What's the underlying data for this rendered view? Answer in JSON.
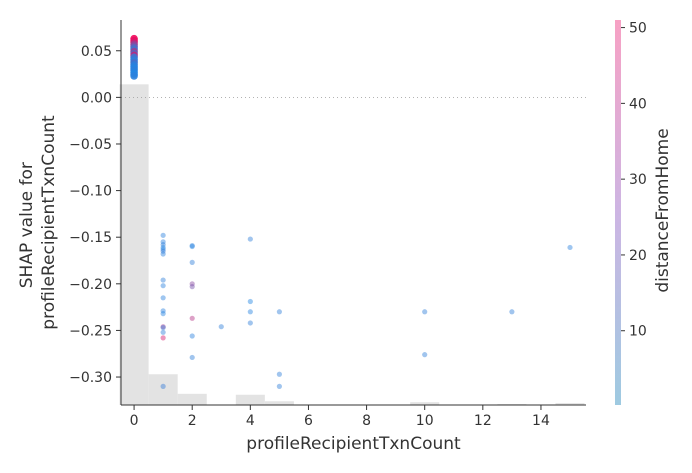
{
  "chart_data": {
    "type": "scatter",
    "title": "",
    "xlabel": "profileRecipientTxnCount",
    "ylabel_lines": [
      "SHAP value for",
      "profileRecipientTxnCount"
    ],
    "xlim": [
      -0.45,
      15.55
    ],
    "ylim": [
      -0.33,
      0.083
    ],
    "x_ticks": [
      0,
      2,
      4,
      6,
      8,
      10,
      12,
      14
    ],
    "y_ticks": [
      0.05,
      0.0,
      -0.05,
      -0.1,
      -0.15,
      -0.2,
      -0.25,
      -0.3
    ],
    "y_tick_labels": [
      "0.05",
      "0.00",
      "−0.05",
      "−0.10",
      "−0.15",
      "−0.20",
      "−0.25",
      "−0.30"
    ],
    "zero_line": 0.0,
    "colorbar": {
      "label": "distanceFromHome",
      "range": [
        0.2,
        51.0
      ],
      "ticks": [
        10,
        20,
        30,
        40,
        50
      ],
      "tick_labels": [
        "10",
        "20",
        "30",
        "40",
        "50"
      ],
      "color_low": "#9ecae1",
      "color_high": "#f7a1c4"
    },
    "colors": {
      "low": "#1e88e5",
      "high": "#ff0051",
      "histogram": "#e3e3e3",
      "axis": "#333333"
    },
    "histogram": [
      {
        "x0": -0.5,
        "x1": 0.5,
        "top": 0.014
      },
      {
        "x0": 0.5,
        "x1": 1.5,
        "top": -0.297
      },
      {
        "x0": 1.5,
        "x1": 2.5,
        "top": -0.318
      },
      {
        "x0": 3.5,
        "x1": 4.5,
        "top": -0.319
      },
      {
        "x0": 4.5,
        "x1": 5.5,
        "top": -0.326
      },
      {
        "x0": 9.5,
        "x1": 10.5,
        "top": -0.327
      },
      {
        "x0": 12.5,
        "x1": 13.5,
        "top": -0.329
      },
      {
        "x0": 14.5,
        "x1": 15.5,
        "top": -0.328
      }
    ],
    "points": [
      {
        "x": 0,
        "y": 0.063,
        "c": 48
      },
      {
        "x": 0,
        "y": 0.061,
        "c": 46
      },
      {
        "x": 0,
        "y": 0.059,
        "c": 42
      },
      {
        "x": 0,
        "y": 0.057,
        "c": 30
      },
      {
        "x": 0,
        "y": 0.055,
        "c": 22
      },
      {
        "x": 0,
        "y": 0.053,
        "c": 12
      },
      {
        "x": 0,
        "y": 0.051,
        "c": 9
      },
      {
        "x": 0,
        "y": 0.049,
        "c": 28
      },
      {
        "x": 0,
        "y": 0.047,
        "c": 14
      },
      {
        "x": 0,
        "y": 0.045,
        "c": 36
      },
      {
        "x": 0,
        "y": 0.043,
        "c": 8
      },
      {
        "x": 0,
        "y": 0.041,
        "c": 6
      },
      {
        "x": 0,
        "y": 0.039,
        "c": 4
      },
      {
        "x": 0,
        "y": 0.037,
        "c": 10
      },
      {
        "x": 0,
        "y": 0.035,
        "c": 5
      },
      {
        "x": 0,
        "y": 0.033,
        "c": 3
      },
      {
        "x": 0,
        "y": 0.031,
        "c": 2
      },
      {
        "x": 0,
        "y": 0.029,
        "c": 4
      },
      {
        "x": 0,
        "y": 0.027,
        "c": 2
      },
      {
        "x": 0,
        "y": 0.025,
        "c": 1
      },
      {
        "x": 0,
        "y": 0.023,
        "c": 3
      },
      {
        "x": 1,
        "y": -0.148,
        "c": 3
      },
      {
        "x": 1,
        "y": -0.155,
        "c": 3
      },
      {
        "x": 1,
        "y": -0.158,
        "c": 4
      },
      {
        "x": 1,
        "y": -0.161,
        "c": 1
      },
      {
        "x": 1,
        "y": -0.163,
        "c": 2
      },
      {
        "x": 1,
        "y": -0.165,
        "c": 5
      },
      {
        "x": 1,
        "y": -0.168,
        "c": 3
      },
      {
        "x": 1,
        "y": -0.196,
        "c": 4
      },
      {
        "x": 1,
        "y": -0.202,
        "c": 3
      },
      {
        "x": 1,
        "y": -0.215,
        "c": 3
      },
      {
        "x": 1,
        "y": -0.229,
        "c": 3
      },
      {
        "x": 1,
        "y": -0.232,
        "c": 2
      },
      {
        "x": 1,
        "y": -0.246,
        "c": 30
      },
      {
        "x": 1,
        "y": -0.247,
        "c": 6
      },
      {
        "x": 1,
        "y": -0.252,
        "c": 4
      },
      {
        "x": 1,
        "y": -0.258,
        "c": 42
      },
      {
        "x": 1,
        "y": -0.31,
        "c": 5
      },
      {
        "x": 2,
        "y": -0.159,
        "c": 3
      },
      {
        "x": 2,
        "y": -0.16,
        "c": 2
      },
      {
        "x": 2,
        "y": -0.177,
        "c": 4
      },
      {
        "x": 2,
        "y": -0.2,
        "c": 24
      },
      {
        "x": 2,
        "y": -0.203,
        "c": 20
      },
      {
        "x": 2,
        "y": -0.237,
        "c": 34
      },
      {
        "x": 2,
        "y": -0.256,
        "c": 3
      },
      {
        "x": 2,
        "y": -0.279,
        "c": 4
      },
      {
        "x": 3,
        "y": -0.246,
        "c": 4
      },
      {
        "x": 4,
        "y": -0.152,
        "c": 4
      },
      {
        "x": 4,
        "y": -0.219,
        "c": 1
      },
      {
        "x": 4,
        "y": -0.23,
        "c": 2
      },
      {
        "x": 4,
        "y": -0.242,
        "c": 4
      },
      {
        "x": 5,
        "y": -0.23,
        "c": 4
      },
      {
        "x": 5,
        "y": -0.297,
        "c": 4
      },
      {
        "x": 5,
        "y": -0.31,
        "c": 4
      },
      {
        "x": 10,
        "y": -0.23,
        "c": 4
      },
      {
        "x": 10,
        "y": -0.276,
        "c": 4
      },
      {
        "x": 13,
        "y": -0.23,
        "c": 4
      },
      {
        "x": 15,
        "y": -0.161,
        "c": 3
      }
    ]
  }
}
